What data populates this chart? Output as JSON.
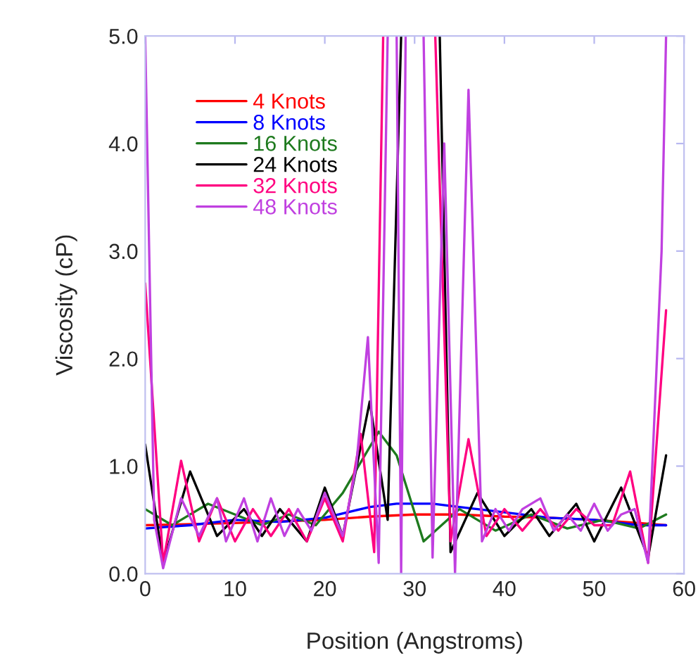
{
  "chart_data": {
    "type": "line",
    "xlabel": "Position (Angstroms)",
    "ylabel": "Viscosity (cP)",
    "xlim": [
      0,
      60
    ],
    "ylim": [
      0,
      5
    ],
    "xticks": [
      0,
      10,
      20,
      30,
      40,
      50,
      60
    ],
    "yticks": [
      {
        "value": 0,
        "label": "0.0"
      },
      {
        "value": 1,
        "label": "1.0"
      },
      {
        "value": 2,
        "label": "2.0"
      },
      {
        "value": 3,
        "label": "3.0"
      },
      {
        "value": 4,
        "label": "4.0"
      },
      {
        "value": 5,
        "label": "5.0"
      }
    ],
    "grid": false,
    "legend": "top left",
    "marker": "none",
    "line_style": "solid",
    "series": [
      {
        "name": "4 Knots",
        "color": "#ff0000",
        "x": [
          0,
          10,
          20,
          25,
          30,
          35,
          40,
          45,
          50,
          55,
          58
        ],
        "values": [
          0.45,
          0.47,
          0.5,
          0.53,
          0.55,
          0.55,
          0.53,
          0.52,
          0.5,
          0.47,
          0.45
        ]
      },
      {
        "name": "8 Knots",
        "color": "#0000ff",
        "x": [
          0,
          5,
          10,
          15,
          20,
          25,
          28,
          32,
          35,
          40,
          45,
          50,
          55,
          58
        ],
        "values": [
          0.42,
          0.45,
          0.5,
          0.48,
          0.52,
          0.62,
          0.65,
          0.65,
          0.62,
          0.57,
          0.52,
          0.5,
          0.45,
          0.45
        ]
      },
      {
        "name": "16 Knots",
        "color": "#1e7a1e",
        "x": [
          0,
          3,
          7,
          10,
          13,
          16,
          19,
          22,
          26,
          28,
          31,
          35,
          39,
          43,
          47,
          51,
          55,
          58
        ],
        "values": [
          0.6,
          0.45,
          0.65,
          0.55,
          0.45,
          0.55,
          0.45,
          0.75,
          1.32,
          1.1,
          0.3,
          0.6,
          0.4,
          0.55,
          0.42,
          0.5,
          0.42,
          0.55
        ]
      },
      {
        "name": "24 Knots",
        "color": "#000000",
        "x": [
          0,
          2,
          5,
          8,
          11,
          13,
          15,
          18,
          20,
          22,
          25,
          27,
          28.5,
          30.5,
          32.8,
          34,
          37,
          40,
          43,
          45,
          48,
          50,
          53,
          56,
          58
        ],
        "values": [
          1.2,
          0.1,
          0.95,
          0.35,
          0.6,
          0.35,
          0.6,
          0.3,
          0.8,
          0.35,
          1.6,
          0.5,
          5.0,
          null,
          5.0,
          0.2,
          0.75,
          0.35,
          0.6,
          0.35,
          0.65,
          0.3,
          0.8,
          0.15,
          1.1
        ]
      },
      {
        "name": "32 Knots",
        "color": "#ff0080",
        "x": [
          0,
          2,
          4,
          6,
          8,
          10,
          12,
          14,
          16,
          18,
          20,
          22,
          24,
          25.5,
          26.5,
          29,
          32.3,
          34,
          36,
          38,
          40,
          42,
          44,
          46,
          48,
          50,
          52,
          54,
          56,
          58
        ],
        "values": [
          2.7,
          0.1,
          1.05,
          0.3,
          0.7,
          0.3,
          0.6,
          0.35,
          0.6,
          0.3,
          0.7,
          0.3,
          1.3,
          0.2,
          5.0,
          null,
          5.0,
          0.3,
          1.25,
          0.35,
          0.6,
          0.4,
          0.6,
          0.4,
          0.6,
          0.45,
          0.45,
          0.95,
          0.1,
          2.45
        ]
      },
      {
        "name": "48 Knots",
        "color": "#c040e0",
        "x": [
          0,
          1,
          2,
          4,
          6,
          8,
          9,
          11,
          12.5,
          14,
          15.5,
          17,
          18.5,
          20,
          22,
          23.5,
          24.8,
          26,
          27,
          27.5,
          28,
          28.5,
          29,
          30,
          31,
          32,
          33.3,
          34.5,
          36,
          37.5,
          39,
          40.5,
          42,
          44,
          45.5,
          47,
          48.5,
          50,
          51.5,
          53,
          54.5,
          56,
          57.5,
          58
        ],
        "values": [
          5.0,
          0.5,
          0.05,
          0.7,
          0.35,
          0.7,
          0.3,
          0.7,
          0.3,
          0.7,
          0.35,
          0.6,
          0.4,
          0.75,
          0.35,
          1.0,
          2.2,
          0.1,
          5.0,
          null,
          5.0,
          0.0,
          5.0,
          null,
          5.0,
          0.15,
          4.0,
          0.0,
          4.5,
          0.3,
          0.6,
          0.4,
          0.6,
          0.7,
          0.4,
          0.55,
          0.4,
          0.65,
          0.4,
          0.55,
          0.6,
          0.1,
          3.0,
          5.0
        ]
      }
    ]
  }
}
